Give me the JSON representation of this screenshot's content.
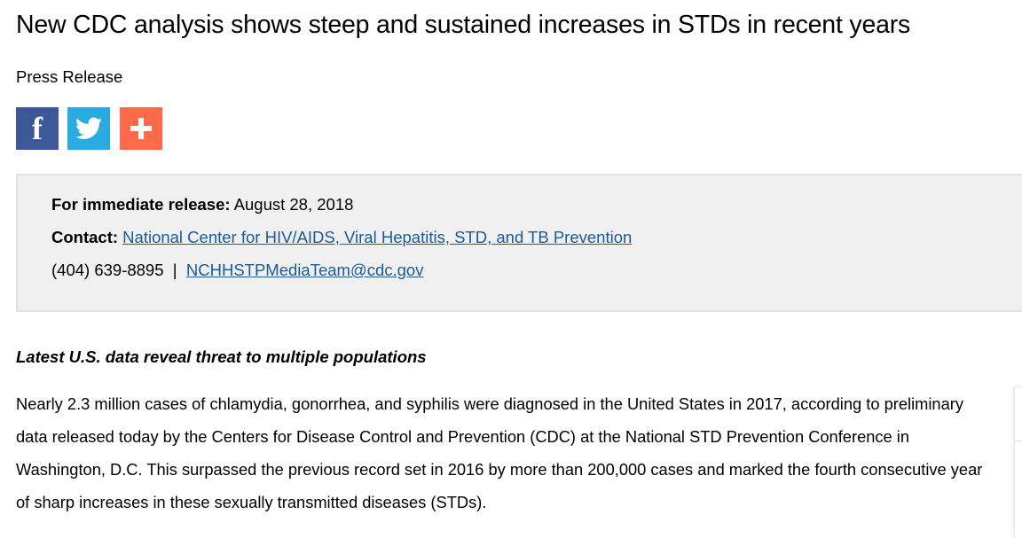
{
  "header": {
    "title": "New CDC analysis shows steep and sustained increases in STDs in recent years",
    "subtitle": "Press Release"
  },
  "social": [
    {
      "icon": "facebook-icon",
      "label": "f",
      "color": "#3b5998"
    },
    {
      "icon": "twitter-icon",
      "color": "#2ba9e1"
    },
    {
      "icon": "plus-icon",
      "color": "#ff6a4a"
    }
  ],
  "release": {
    "release_label": "For immediate release:",
    "release_date": "August 28, 2018",
    "contact_label": "Contact:",
    "contact_link": "National Center for HIV/AIDS, Viral Hepatitis, STD, and TB Prevention",
    "phone": "(404) 639-8895",
    "separator": "|",
    "email": "NCHHSTPMediaTeam@cdc.gov"
  },
  "article": {
    "heading": "Latest U.S. data reveal threat to multiple populations",
    "paragraph": "Nearly 2.3 million cases of chlamydia, gonorrhea, and syphilis were diagnosed in the United States in 2017, according to preliminary data released today by the Centers for Disease Control and Prevention (CDC) at the National STD Prevention Conference in Washington, D.C. This surpassed the previous record set in 2016 by more than 200,000 cases and marked the fourth consecutive year of sharp increases in these sexually transmitted diseases (STDs)."
  },
  "colors": {
    "link": "#1b5b96",
    "box_bg": "#f0f0f0"
  }
}
